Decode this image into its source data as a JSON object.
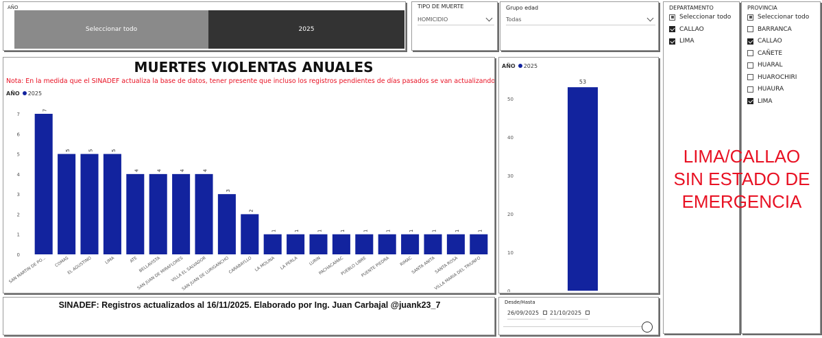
{
  "year_slicer": {
    "title": "AÑO",
    "options": [
      "Seleccionar todo",
      "2025"
    ]
  },
  "tipo_muerte": {
    "title": "TIPO DE MUERTE",
    "value": "HOMICIDIO"
  },
  "grupo_edad": {
    "title": "Grupo edad",
    "value": "Todas"
  },
  "departamento": {
    "title": "DEPARTAMENTO",
    "items": [
      {
        "label": "Seleccionar todo",
        "state": "partial"
      },
      {
        "label": "CALLAO",
        "state": "on"
      },
      {
        "label": "LIMA",
        "state": "on"
      }
    ]
  },
  "provincia": {
    "title": "PROVINCIA",
    "items": [
      {
        "label": "Seleccionar todo",
        "state": "partial"
      },
      {
        "label": "BARRANCA",
        "state": "off"
      },
      {
        "label": "CALLAO",
        "state": "on"
      },
      {
        "label": "CAÑETE",
        "state": "off"
      },
      {
        "label": "HUARAL",
        "state": "off"
      },
      {
        "label": "HUAROCHIRI",
        "state": "off"
      },
      {
        "label": "HUAURA",
        "state": "off"
      },
      {
        "label": "LIMA",
        "state": "on"
      }
    ]
  },
  "main_chart": {
    "title": "MUERTES VIOLENTAS ANUALES",
    "note": "Nota: En la medida que el SINADEF actualiza la base de datos, tener presente que incluso los registros pendientes de días pasados se van actualizando.",
    "legend_title": "AÑO",
    "legend_item": "2025"
  },
  "side_chart": {
    "legend_title": "AÑO",
    "legend_item": "2025"
  },
  "banner": {
    "lines": [
      "LIMA/CALLAO",
      "SIN ESTADO DE",
      "EMERGENCIA"
    ]
  },
  "footer": {
    "text": "SINADEF: Registros actualizados al 16/11/2025. Elaborado por Ing. Juan Carbajal @juank23_7"
  },
  "date_slicer": {
    "title": "Desde/Hasta",
    "from": "26/09/2025",
    "to": "21/10/2025"
  },
  "chart_data": [
    {
      "type": "bar",
      "title": "MUERTES VIOLENTAS ANUALES",
      "legend": {
        "title": "AÑO",
        "position": "top-left"
      },
      "categories": [
        "SAN MARTIN DE PO...",
        "COMAS",
        "EL AGUSTINO",
        "LIMA",
        "ATE",
        "BELLAVISTA",
        "SAN JUAN DE MIRAFLORES",
        "VILLA EL SALVADOR",
        "SAN JUAN DE LURIGANCHO",
        "CARABAYLLO",
        "LA MOLINA",
        "LA PERLA",
        "LURIN",
        "PACHACAMAC",
        "PUEBLO LIBRE",
        "PUENTE PIEDRA",
        "RIMAC",
        "SANTA ANITA",
        "SANTA ROSA",
        "VILLA MARIA DEL TRIUNFO"
      ],
      "series": [
        {
          "name": "2025",
          "values": [
            7,
            5,
            5,
            5,
            4,
            4,
            4,
            4,
            3,
            2,
            1,
            1,
            1,
            1,
            1,
            1,
            1,
            1,
            1,
            1
          ]
        }
      ],
      "ylim": [
        0,
        7
      ],
      "yticks": [
        0,
        1,
        2,
        3,
        4,
        5,
        6,
        7
      ],
      "grid": false,
      "color": "#12239e"
    },
    {
      "type": "bar",
      "legend": {
        "title": "AÑO",
        "position": "top-left"
      },
      "categories": [
        ""
      ],
      "series": [
        {
          "name": "2025",
          "values": [
            53
          ]
        }
      ],
      "ylim": [
        0,
        55
      ],
      "yticks": [
        0,
        10,
        20,
        30,
        40,
        50
      ],
      "grid": false,
      "color": "#12239e"
    }
  ]
}
